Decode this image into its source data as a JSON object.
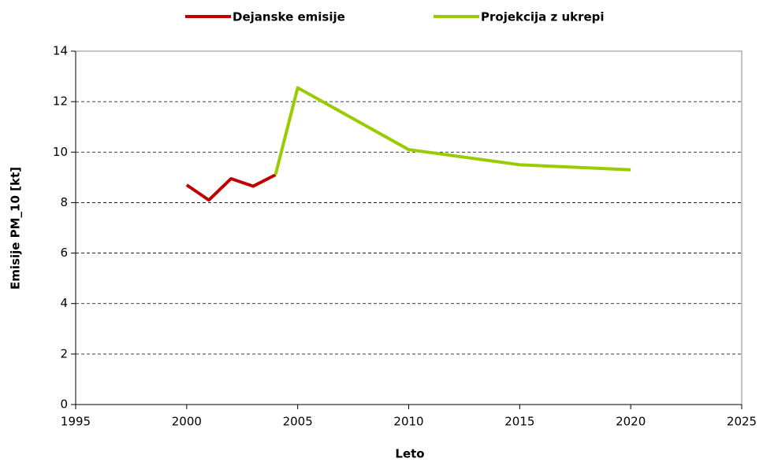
{
  "chart_data": {
    "type": "line",
    "xlabel": "Leto",
    "ylabel": "Emisije PM_10 [kt]",
    "series": [
      {
        "name": "Dejanske emisije",
        "color": "#c00000",
        "x": [
          2000,
          2001,
          2002,
          2003,
          2004
        ],
        "values": [
          8.7,
          8.1,
          8.95,
          8.65,
          9.1
        ]
      },
      {
        "name": "Projekcija z ukrepi",
        "color": "#99cc00",
        "x": [
          2004,
          2005,
          2010,
          2015,
          2020
        ],
        "values": [
          9.1,
          12.55,
          10.1,
          9.5,
          9.3
        ]
      }
    ],
    "xlim": [
      1995,
      2025
    ],
    "xticks": [
      1995,
      2000,
      2005,
      2010,
      2015,
      2020,
      2025
    ],
    "ylim": [
      0,
      14
    ],
    "yticks": [
      0,
      2,
      4,
      6,
      8,
      10,
      12,
      14
    ],
    "grid": true,
    "legend": "top"
  }
}
